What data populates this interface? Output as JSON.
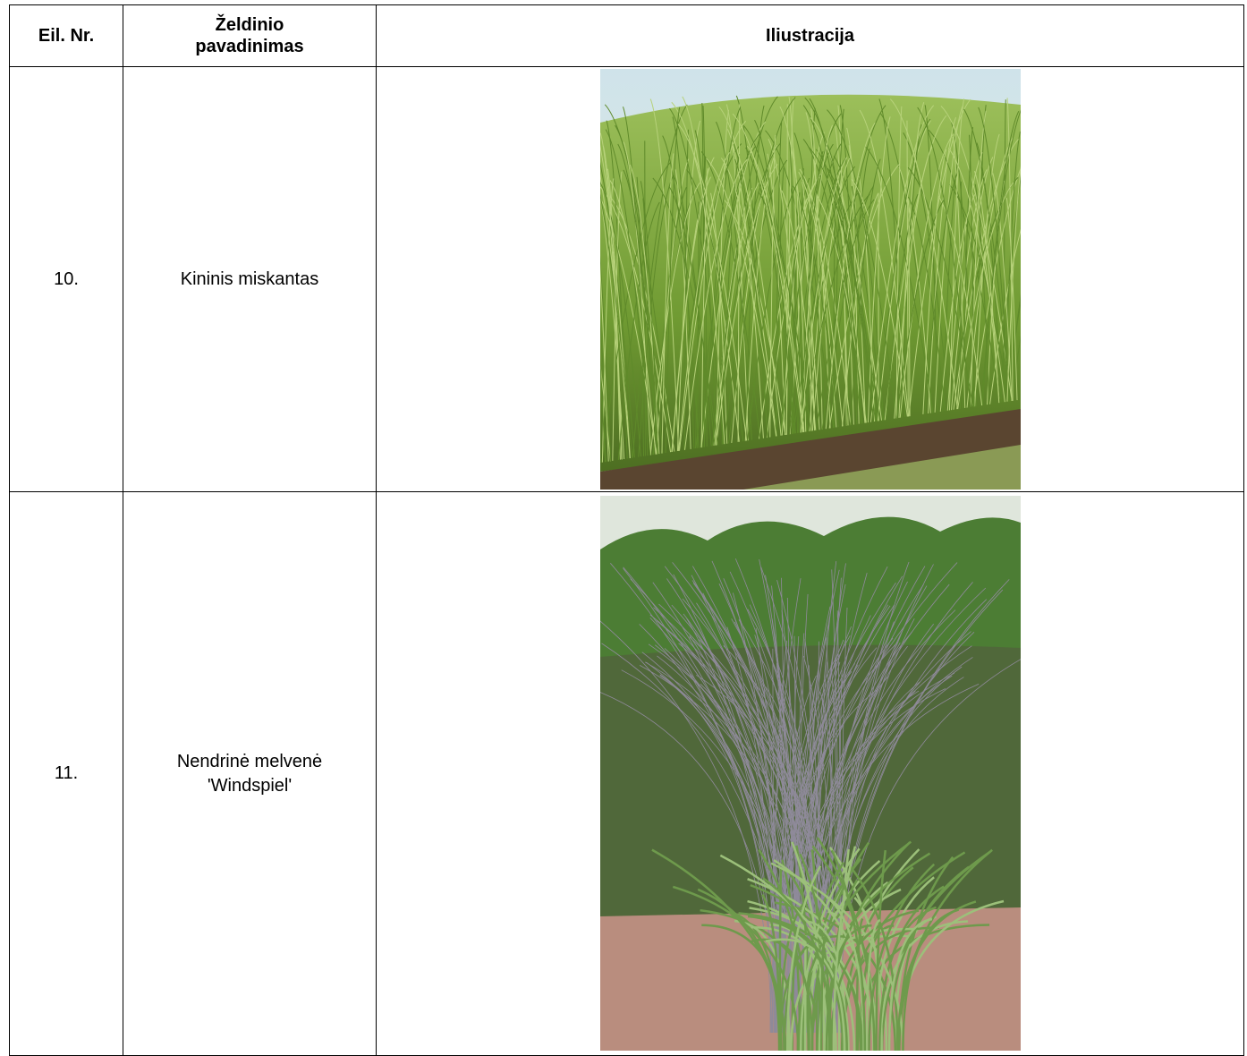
{
  "table": {
    "header": [
      "Eil. Nr.",
      "Želdinio pavadinimas",
      "Iliustracija"
    ],
    "rows": [
      [
        "10.",
        "Kininis miskantas"
      ],
      [
        "11.",
        "Nendrinė melvenė 'Windspiel'"
      ]
    ]
  }
}
